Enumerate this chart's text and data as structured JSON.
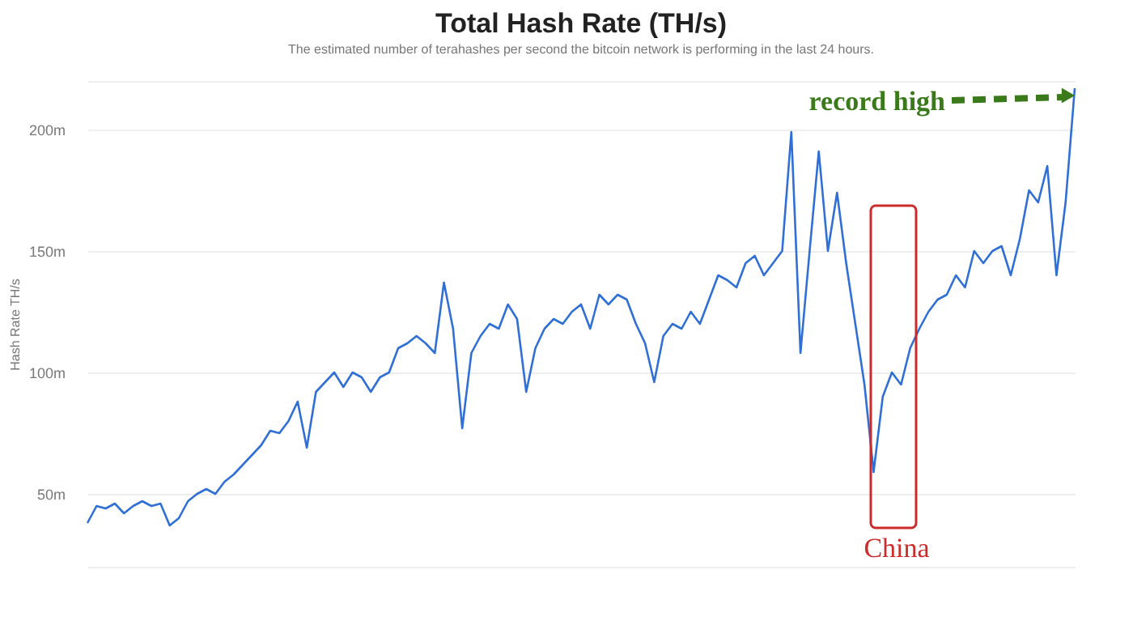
{
  "chart_data": {
    "type": "line",
    "title": "Total Hash Rate (TH/s)",
    "subtitle": "The estimated number of terahashes per second the bitcoin network is performing in the last 24 hours.",
    "ylabel": "Hash Rate TH/s",
    "categories": [
      null,
      null,
      null,
      null,
      null,
      null,
      null,
      null,
      null,
      null,
      null,
      null,
      null,
      null,
      null,
      null,
      null,
      null,
      null,
      null,
      null,
      null,
      null,
      null,
      null,
      null,
      null,
      null,
      null,
      null,
      null,
      null,
      null,
      null,
      null,
      null,
      null,
      null,
      null,
      null,
      null,
      null,
      null,
      null,
      null,
      null,
      null,
      null,
      null,
      null,
      null,
      null,
      null,
      null,
      null,
      null,
      null,
      null,
      null,
      null,
      null,
      null,
      null,
      null,
      null,
      null,
      null,
      null,
      null,
      null,
      null,
      null,
      null,
      null,
      null,
      null,
      null,
      null,
      null,
      null,
      null,
      null,
      null,
      null,
      null,
      null,
      null,
      null,
      null,
      null,
      null,
      null,
      null,
      null,
      null,
      null,
      null,
      null,
      null,
      null,
      null,
      null,
      null,
      null,
      null,
      null,
      null,
      null,
      null
    ],
    "series": [
      {
        "color": "#2f6fd6",
        "values": [
          38,
          45,
          44,
          46,
          42,
          45,
          47,
          45,
          46,
          37,
          40,
          47,
          50,
          52,
          50,
          55,
          58,
          62,
          66,
          70,
          76,
          75,
          80,
          88,
          69,
          92,
          96,
          100,
          94,
          100,
          98,
          92,
          98,
          100,
          110,
          112,
          115,
          112,
          108,
          137,
          118,
          77,
          108,
          115,
          120,
          118,
          128,
          122,
          92,
          110,
          118,
          122,
          120,
          125,
          128,
          118,
          132,
          128,
          132,
          130,
          120,
          112,
          96,
          115,
          120,
          118,
          125,
          120,
          130,
          140,
          138,
          135,
          145,
          148,
          140,
          145,
          150,
          199,
          108,
          150,
          191,
          150,
          174,
          145,
          120,
          95,
          59,
          90,
          100,
          95,
          110,
          118,
          125,
          130,
          132,
          140,
          135,
          150,
          145,
          150,
          152,
          140,
          155,
          175,
          170,
          185,
          140,
          170,
          217
        ]
      }
    ],
    "ylim": [
      20,
      220
    ],
    "yticks": [
      {
        "value": 20,
        "label": null
      },
      {
        "value": 50,
        "label": "50m"
      },
      {
        "value": 100,
        "label": "100m"
      },
      {
        "value": 150,
        "label": "150m"
      },
      {
        "value": 200,
        "label": "200m"
      },
      {
        "value": 220,
        "label": null
      }
    ],
    "grid": "y",
    "tick_labels": "y",
    "marker": "none",
    "line_style": "solid",
    "annotations": [
      "record high",
      "China"
    ]
  }
}
